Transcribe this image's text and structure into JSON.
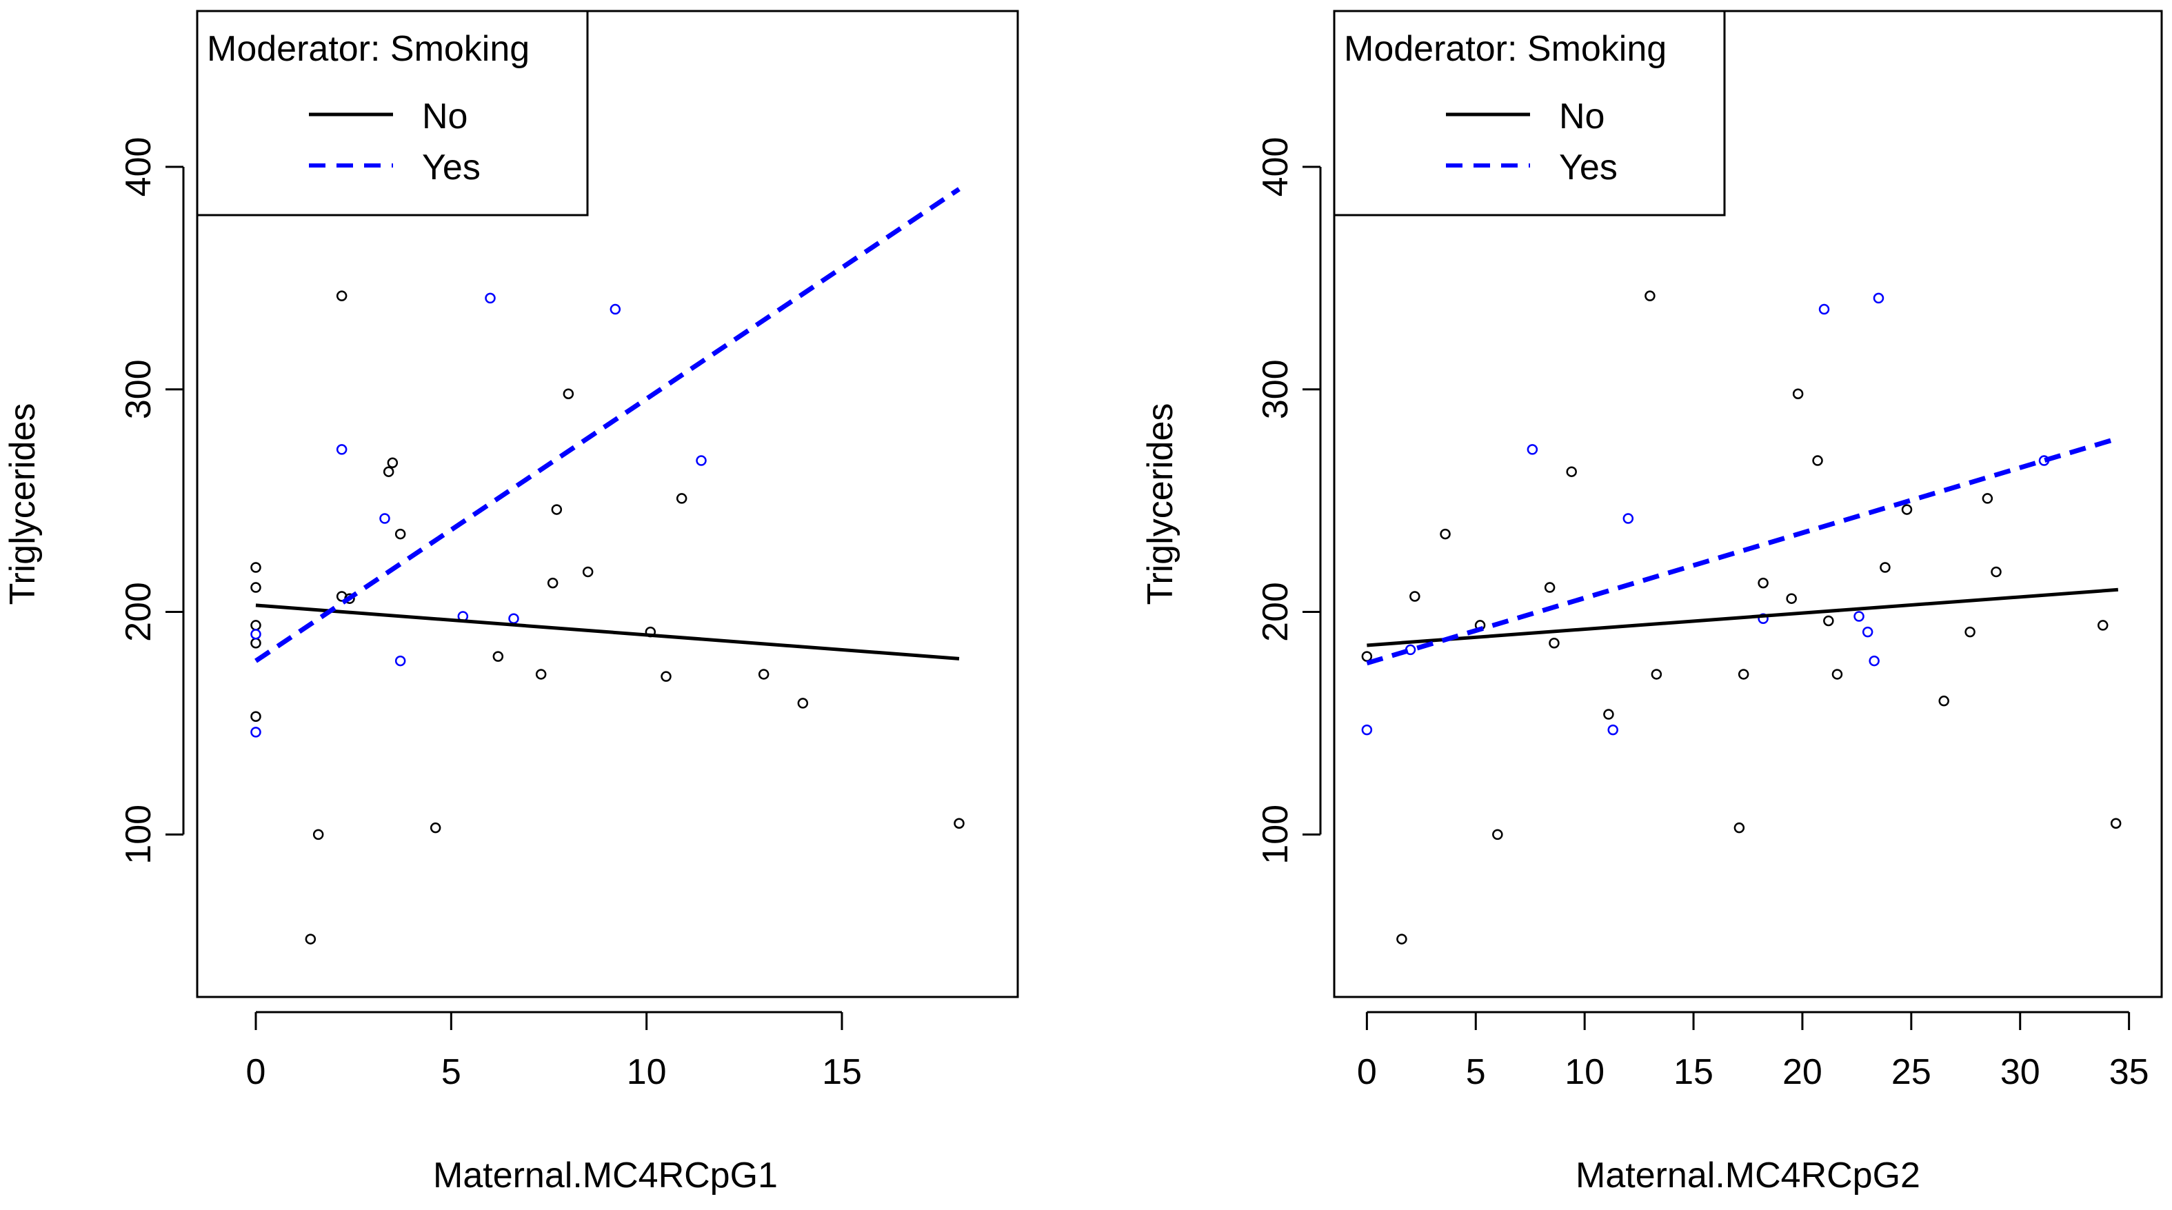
{
  "chart_data": [
    {
      "type": "scatter",
      "xlabel": "Maternal.MC4RCpG1",
      "ylabel": "Triglycerides",
      "xlim": [
        -1.5,
        19.5
      ],
      "ylim": [
        27,
        470
      ],
      "x_ticks": [
        0,
        5,
        10,
        15
      ],
      "y_ticks": [
        100,
        200,
        300,
        400
      ],
      "legend": {
        "title": "Moderator: Smoking",
        "entries": [
          {
            "label": "No",
            "color": "#000000",
            "style": "solid"
          },
          {
            "label": "Yes",
            "color": "#0000ff",
            "style": "dashed"
          }
        ]
      },
      "series": [
        {
          "name": "No",
          "color": "#000000",
          "points": [
            [
              0,
              220
            ],
            [
              0,
              211
            ],
            [
              0,
              194
            ],
            [
              0,
              186
            ],
            [
              0,
              153
            ],
            [
              1.4,
              53
            ],
            [
              1.6,
              100
            ],
            [
              2.2,
              342
            ],
            [
              2.2,
              207
            ],
            [
              2.4,
              206
            ],
            [
              3.4,
              263
            ],
            [
              3.5,
              267
            ],
            [
              3.7,
              235
            ],
            [
              4.6,
              103
            ],
            [
              6.2,
              180
            ],
            [
              7.3,
              172
            ],
            [
              7.6,
              213
            ],
            [
              7.7,
              246
            ],
            [
              8.0,
              298
            ],
            [
              8.5,
              218
            ],
            [
              10.1,
              191
            ],
            [
              10.5,
              171
            ],
            [
              10.9,
              251
            ],
            [
              13.0,
              172
            ],
            [
              14.0,
              159
            ],
            [
              18.0,
              105
            ]
          ],
          "fit": {
            "x": [
              0,
              18
            ],
            "y": [
              203,
              179
            ]
          }
        },
        {
          "name": "Yes",
          "color": "#0000ff",
          "points": [
            [
              0,
              190
            ],
            [
              0,
              146
            ],
            [
              2.2,
              273
            ],
            [
              3.3,
              242
            ],
            [
              3.7,
              178
            ],
            [
              5.3,
              198
            ],
            [
              6.0,
              341
            ],
            [
              6.6,
              197
            ],
            [
              9.2,
              336
            ],
            [
              11.4,
              268
            ]
          ],
          "fit": {
            "x": [
              0,
              18
            ],
            "y": [
              178,
              390
            ]
          }
        }
      ]
    },
    {
      "type": "scatter",
      "xlabel": "Maternal.MC4RCpG2",
      "ylabel": "Triglycerides",
      "xlim": [
        -1.5,
        36.5
      ],
      "ylim": [
        27,
        470
      ],
      "x_ticks": [
        0,
        5,
        10,
        15,
        20,
        25,
        30,
        35
      ],
      "y_ticks": [
        100,
        200,
        300,
        400
      ],
      "legend": {
        "title": "Moderator: Smoking",
        "entries": [
          {
            "label": "No",
            "color": "#000000",
            "style": "solid"
          },
          {
            "label": "Yes",
            "color": "#0000ff",
            "style": "dashed"
          }
        ]
      },
      "series": [
        {
          "name": "No",
          "color": "#000000",
          "points": [
            [
              0,
              180
            ],
            [
              1.6,
              53
            ],
            [
              2.2,
              207
            ],
            [
              3.6,
              235
            ],
            [
              5.2,
              194
            ],
            [
              6.0,
              100
            ],
            [
              8.4,
              211
            ],
            [
              8.6,
              186
            ],
            [
              9.4,
              263
            ],
            [
              11.1,
              154
            ],
            [
              13.0,
              342
            ],
            [
              13.3,
              172
            ],
            [
              17.1,
              103
            ],
            [
              17.3,
              172
            ],
            [
              18.2,
              213
            ],
            [
              19.5,
              206
            ],
            [
              19.8,
              298
            ],
            [
              20.7,
              268
            ],
            [
              21.2,
              196
            ],
            [
              21.6,
              172
            ],
            [
              23.8,
              220
            ],
            [
              24.8,
              246
            ],
            [
              26.5,
              160
            ],
            [
              27.7,
              191
            ],
            [
              28.5,
              251
            ],
            [
              28.9,
              218
            ],
            [
              33.8,
              194
            ],
            [
              34.4,
              105
            ]
          ],
          "fit": {
            "x": [
              0,
              34.5
            ],
            "y": [
              185,
              210
            ]
          }
        },
        {
          "name": "Yes",
          "color": "#0000ff",
          "points": [
            [
              0,
              147
            ],
            [
              2.0,
              183
            ],
            [
              7.6,
              273
            ],
            [
              11.3,
              147
            ],
            [
              12.0,
              242
            ],
            [
              18.2,
              197
            ],
            [
              21.0,
              336
            ],
            [
              22.6,
              198
            ],
            [
              23.0,
              191
            ],
            [
              23.3,
              178
            ],
            [
              23.5,
              341
            ],
            [
              31.1,
              268
            ]
          ],
          "fit": {
            "x": [
              0,
              34.5
            ],
            "y": [
              177,
              278
            ]
          }
        }
      ]
    }
  ]
}
